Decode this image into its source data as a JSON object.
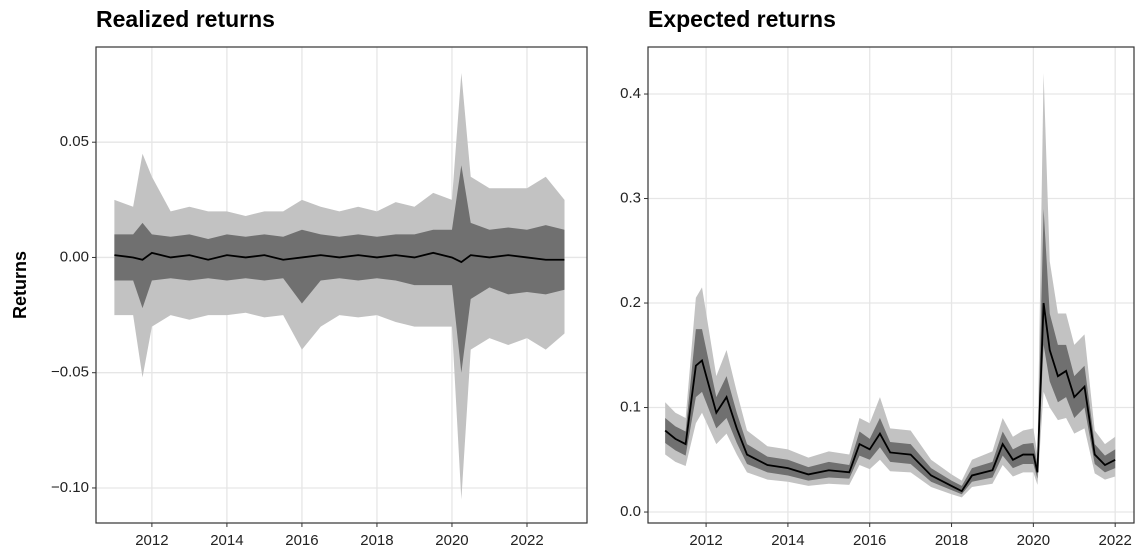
{
  "chart_data": [
    {
      "type": "line",
      "title": "Realized returns",
      "y_label": "Returns",
      "x": [
        2011,
        2011.5,
        2011.75,
        2012,
        2012.5,
        2013,
        2013.5,
        2014,
        2014.5,
        2015,
        2015.5,
        2016,
        2016.5,
        2017,
        2017.5,
        2018,
        2018.5,
        2019,
        2019.5,
        2020,
        2020.25,
        2020.5,
        2021,
        2021.5,
        2022,
        2022.5,
        2023
      ],
      "line": {
        "color": "#000000",
        "values": [
          0.001,
          0,
          -0.001,
          0.002,
          0,
          0.001,
          -0.001,
          0.001,
          0,
          0.001,
          -0.001,
          0,
          0.001,
          0,
          0.001,
          0,
          0.001,
          0,
          0.002,
          0,
          -0.002,
          0.001,
          0,
          0.001,
          0,
          -0.001,
          -0.001
        ]
      },
      "bands": [
        {
          "color": "#c2c2c2",
          "upper": [
            0.025,
            0.022,
            0.045,
            0.035,
            0.02,
            0.022,
            0.02,
            0.02,
            0.018,
            0.02,
            0.02,
            0.025,
            0.022,
            0.02,
            0.022,
            0.02,
            0.024,
            0.022,
            0.028,
            0.025,
            0.08,
            0.035,
            0.03,
            0.03,
            0.03,
            0.035,
            0.025
          ],
          "lower": [
            -0.025,
            -0.025,
            -0.052,
            -0.03,
            -0.025,
            -0.027,
            -0.025,
            -0.025,
            -0.024,
            -0.026,
            -0.025,
            -0.04,
            -0.03,
            -0.025,
            -0.026,
            -0.025,
            -0.028,
            -0.03,
            -0.03,
            -0.03,
            -0.105,
            -0.04,
            -0.035,
            -0.038,
            -0.035,
            -0.04,
            -0.033
          ]
        },
        {
          "color": "#707070",
          "upper": [
            0.01,
            0.01,
            0.015,
            0.01,
            0.009,
            0.01,
            0.008,
            0.01,
            0.009,
            0.01,
            0.009,
            0.012,
            0.01,
            0.009,
            0.01,
            0.009,
            0.01,
            0.01,
            0.012,
            0.012,
            0.04,
            0.015,
            0.012,
            0.013,
            0.012,
            0.014,
            0.012
          ],
          "lower": [
            -0.01,
            -0.01,
            -0.022,
            -0.01,
            -0.009,
            -0.01,
            -0.009,
            -0.01,
            -0.009,
            -0.01,
            -0.009,
            -0.02,
            -0.01,
            -0.009,
            -0.01,
            -0.009,
            -0.01,
            -0.012,
            -0.012,
            -0.012,
            -0.05,
            -0.018,
            -0.013,
            -0.016,
            -0.015,
            -0.016,
            -0.014
          ]
        }
      ],
      "xlim": [
        2010.51,
        2023.6
      ],
      "ylim": [
        -0.1152,
        0.0913
      ],
      "xticks": [
        2012,
        2014,
        2016,
        2018,
        2020,
        2022
      ],
      "yticks": [
        {
          "value": -0.1,
          "label": "−0.10"
        },
        {
          "value": -0.05,
          "label": "−0.05"
        },
        {
          "value": 0,
          "label": "0.00"
        },
        {
          "value": 0.05,
          "label": "0.05"
        }
      ],
      "grid": true
    },
    {
      "type": "line",
      "title": "Expected returns",
      "x": [
        2011,
        2011.25,
        2011.5,
        2011.75,
        2011.9,
        2012.25,
        2012.5,
        2012.75,
        2013,
        2013.5,
        2014,
        2014.5,
        2015,
        2015.5,
        2015.75,
        2016,
        2016.25,
        2016.5,
        2017,
        2017.5,
        2018,
        2018.25,
        2018.5,
        2019,
        2019.25,
        2019.5,
        2019.75,
        2020,
        2020.1,
        2020.25,
        2020.4,
        2020.6,
        2020.8,
        2021,
        2021.25,
        2021.5,
        2021.75,
        2022
      ],
      "line": {
        "color": "#000000",
        "values": [
          0.078,
          0.07,
          0.065,
          0.14,
          0.145,
          0.095,
          0.11,
          0.08,
          0.055,
          0.045,
          0.042,
          0.036,
          0.04,
          0.038,
          0.065,
          0.06,
          0.075,
          0.057,
          0.055,
          0.035,
          0.025,
          0.02,
          0.035,
          0.04,
          0.065,
          0.05,
          0.055,
          0.055,
          0.038,
          0.2,
          0.155,
          0.13,
          0.135,
          0.11,
          0.12,
          0.055,
          0.045,
          0.05
        ]
      },
      "bands": [
        {
          "color": "#c2c2c2",
          "upper": [
            0.105,
            0.095,
            0.09,
            0.205,
            0.215,
            0.13,
            0.155,
            0.115,
            0.078,
            0.063,
            0.06,
            0.052,
            0.058,
            0.055,
            0.09,
            0.085,
            0.11,
            0.08,
            0.078,
            0.05,
            0.036,
            0.03,
            0.05,
            0.058,
            0.09,
            0.072,
            0.078,
            0.08,
            0.055,
            0.42,
            0.24,
            0.19,
            0.19,
            0.16,
            0.17,
            0.078,
            0.065,
            0.072
          ],
          "lower": [
            0.055,
            0.048,
            0.044,
            0.085,
            0.095,
            0.065,
            0.075,
            0.055,
            0.038,
            0.031,
            0.029,
            0.025,
            0.027,
            0.026,
            0.045,
            0.041,
            0.05,
            0.039,
            0.038,
            0.024,
            0.017,
            0.014,
            0.024,
            0.027,
            0.045,
            0.034,
            0.038,
            0.038,
            0.026,
            0.115,
            0.1,
            0.088,
            0.09,
            0.075,
            0.08,
            0.037,
            0.031,
            0.034
          ]
        },
        {
          "color": "#707070",
          "upper": [
            0.09,
            0.082,
            0.077,
            0.175,
            0.175,
            0.11,
            0.13,
            0.095,
            0.065,
            0.053,
            0.05,
            0.043,
            0.048,
            0.045,
            0.077,
            0.07,
            0.09,
            0.067,
            0.065,
            0.042,
            0.03,
            0.025,
            0.042,
            0.048,
            0.077,
            0.06,
            0.065,
            0.066,
            0.045,
            0.29,
            0.19,
            0.16,
            0.16,
            0.13,
            0.14,
            0.065,
            0.054,
            0.06
          ],
          "lower": [
            0.066,
            0.059,
            0.054,
            0.11,
            0.115,
            0.08,
            0.09,
            0.066,
            0.046,
            0.038,
            0.035,
            0.03,
            0.033,
            0.032,
            0.054,
            0.05,
            0.062,
            0.048,
            0.046,
            0.029,
            0.021,
            0.017,
            0.029,
            0.033,
            0.054,
            0.042,
            0.046,
            0.046,
            0.032,
            0.16,
            0.125,
            0.105,
            0.11,
            0.09,
            0.1,
            0.046,
            0.038,
            0.042
          ]
        }
      ],
      "xlim": [
        2010.58,
        2022.46
      ],
      "ylim": [
        -0.0105,
        0.445
      ],
      "xticks": [
        2012,
        2014,
        2016,
        2018,
        2020,
        2022
      ],
      "yticks": [
        {
          "value": 0,
          "label": "0.0"
        },
        0.1,
        0.2,
        0.3,
        0.4
      ],
      "grid": true
    }
  ]
}
